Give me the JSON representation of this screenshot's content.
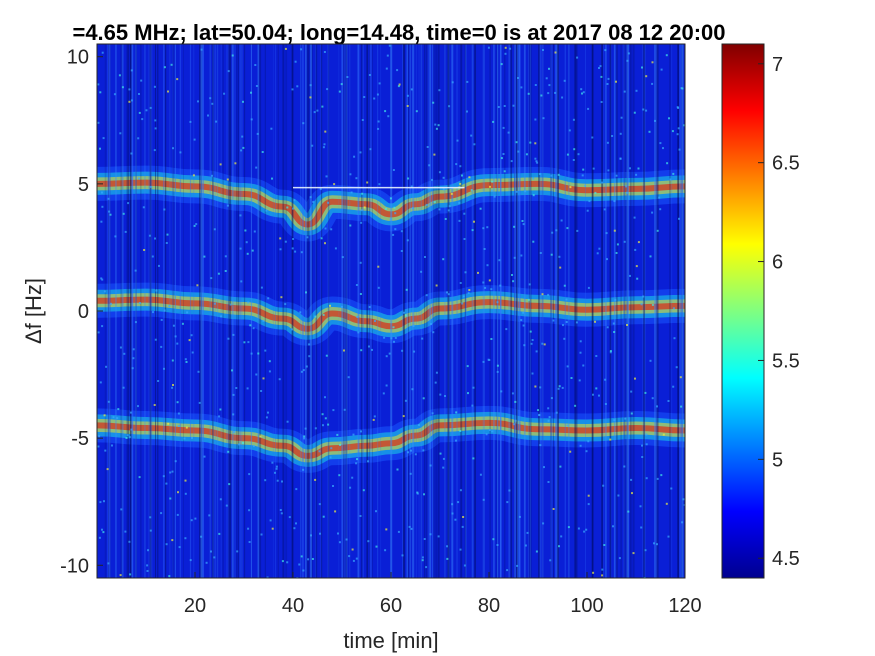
{
  "chart_data": {
    "type": "heatmap",
    "title": "=4.65 MHz;  lat=50.04; long=14.48, time=0 is at 2017 08 12 20:00",
    "xlabel": "time [min]",
    "ylabel": "Δf [Hz]",
    "xlim": [
      0,
      120
    ],
    "ylim": [
      -10.5,
      10.5
    ],
    "xticks": [
      20,
      40,
      60,
      80,
      100,
      120
    ],
    "yticks": [
      -10,
      -5,
      0,
      5,
      10
    ],
    "colorbar": {
      "colormap": "jet",
      "range": [
        4.4,
        7.1
      ],
      "ticks": [
        "4.5",
        "5",
        "5.5",
        "6",
        "6.5",
        "7"
      ]
    },
    "grid": false,
    "traces": [
      {
        "name": "upper",
        "points": [
          [
            0,
            5.0
          ],
          [
            10,
            5.05
          ],
          [
            20,
            4.9
          ],
          [
            30,
            4.6
          ],
          [
            38,
            4.1
          ],
          [
            43,
            3.4
          ],
          [
            48,
            4.3
          ],
          [
            55,
            4.2
          ],
          [
            60,
            3.8
          ],
          [
            65,
            4.2
          ],
          [
            70,
            4.5
          ],
          [
            80,
            4.95
          ],
          [
            90,
            5.0
          ],
          [
            100,
            4.75
          ],
          [
            110,
            4.8
          ],
          [
            120,
            4.9
          ]
        ]
      },
      {
        "name": "middle",
        "points": [
          [
            0,
            0.4
          ],
          [
            10,
            0.45
          ],
          [
            20,
            0.3
          ],
          [
            30,
            0.1
          ],
          [
            38,
            -0.3
          ],
          [
            43,
            -0.7
          ],
          [
            48,
            -0.1
          ],
          [
            55,
            -0.4
          ],
          [
            60,
            -0.6
          ],
          [
            65,
            -0.3
          ],
          [
            70,
            0.1
          ],
          [
            80,
            0.35
          ],
          [
            90,
            0.2
          ],
          [
            100,
            0.05
          ],
          [
            110,
            0.15
          ],
          [
            120,
            0.2
          ]
        ]
      },
      {
        "name": "lower",
        "points": [
          [
            0,
            -4.5
          ],
          [
            10,
            -4.6
          ],
          [
            20,
            -4.7
          ],
          [
            30,
            -5.0
          ],
          [
            38,
            -5.3
          ],
          [
            43,
            -5.7
          ],
          [
            48,
            -5.4
          ],
          [
            55,
            -5.3
          ],
          [
            60,
            -5.2
          ],
          [
            65,
            -4.9
          ],
          [
            70,
            -4.5
          ],
          [
            80,
            -4.4
          ],
          [
            90,
            -4.65
          ],
          [
            100,
            -4.7
          ],
          [
            110,
            -4.6
          ],
          [
            120,
            -4.7
          ]
        ]
      }
    ]
  }
}
